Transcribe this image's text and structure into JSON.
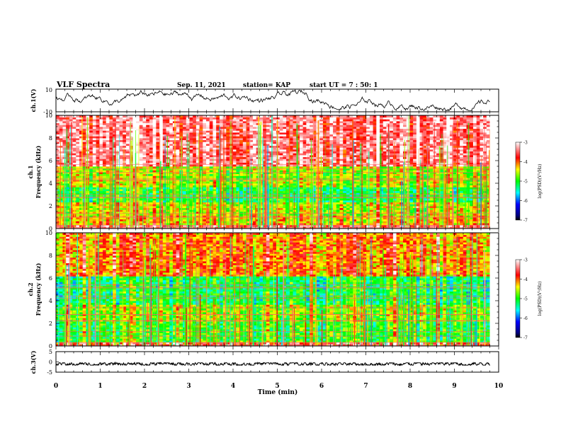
{
  "header": {
    "title": "VLF Spectra",
    "date": "Sep. 11, 2021",
    "station": "station= KAP",
    "start": "start  UT =   7 : 50: 1"
  },
  "chart_data": [
    {
      "type": "line",
      "panel": "ch1-waveform",
      "ylabel": "ch.1(V)",
      "ylim": [
        -10,
        10
      ],
      "yticks": [
        "10",
        "-10"
      ],
      "xlim": [
        0,
        10
      ],
      "description_values": {
        "typical_range": [
          -9,
          9
        ]
      }
    },
    {
      "type": "heatmap",
      "panel": "ch1-spectrogram",
      "ylabel_line1": "ch.1",
      "ylabel_line2": "Frequency  (kHz)",
      "ylim": [
        0,
        10
      ],
      "yticks": [
        "0",
        "2",
        "4",
        "6",
        "8",
        "10"
      ],
      "xlim": [
        0,
        9.8
      ],
      "colorbar": {
        "label": "log(PSD)(V²/Hz)",
        "range": [
          -7,
          -3
        ],
        "ticks": [
          "-3",
          "-4",
          "-5",
          "-6",
          "-7"
        ]
      },
      "bands": [
        {
          "f": [
            0,
            0.3
          ],
          "level": -3.4
        },
        {
          "f": [
            0.3,
            1.2
          ],
          "level": -4.3
        },
        {
          "f": [
            1.2,
            2.4
          ],
          "level": -4.5
        },
        {
          "f": [
            2.4,
            3.6
          ],
          "level": -5.1
        },
        {
          "f": [
            3.6,
            5.5
          ],
          "level": -4.6
        },
        {
          "f": [
            5.5,
            10
          ],
          "level": -3.4
        }
      ]
    },
    {
      "type": "heatmap",
      "panel": "ch2-spectrogram",
      "ylabel_line1": "ch.2",
      "ylabel_line2": "Frequency  (kHz)",
      "ylim": [
        0,
        10
      ],
      "yticks": [
        "0",
        "2",
        "4",
        "6",
        "8",
        "10"
      ],
      "xlim": [
        0,
        9.8
      ],
      "colorbar": {
        "label": "log(PSD)(V²/Hz)",
        "range": [
          -7,
          -3
        ],
        "ticks": [
          "-3",
          "-4",
          "-5",
          "-6",
          "-7"
        ]
      },
      "bands": [
        {
          "f": [
            0,
            0.3
          ],
          "level": -3.6
        },
        {
          "f": [
            0.3,
            2.2
          ],
          "level": -5.0
        },
        {
          "f": [
            2.2,
            3.6
          ],
          "level": -4.7
        },
        {
          "f": [
            3.6,
            6.2
          ],
          "level": -5.2
        },
        {
          "f": [
            6.2,
            10
          ],
          "level": -4.1
        }
      ]
    },
    {
      "type": "line",
      "panel": "ch3-waveform",
      "ylabel": "ch.3(V)",
      "ylim": [
        -5,
        5
      ],
      "yticks": [
        "5",
        "0",
        "-5"
      ],
      "xlabel": "Time  (min)",
      "xticks": [
        "0",
        "1",
        "2",
        "3",
        "4",
        "5",
        "6",
        "7",
        "8",
        "9",
        "10"
      ],
      "xlim": [
        0,
        10
      ],
      "description_values": {
        "typical_range": [
          -1.6,
          -0.4
        ]
      }
    }
  ]
}
